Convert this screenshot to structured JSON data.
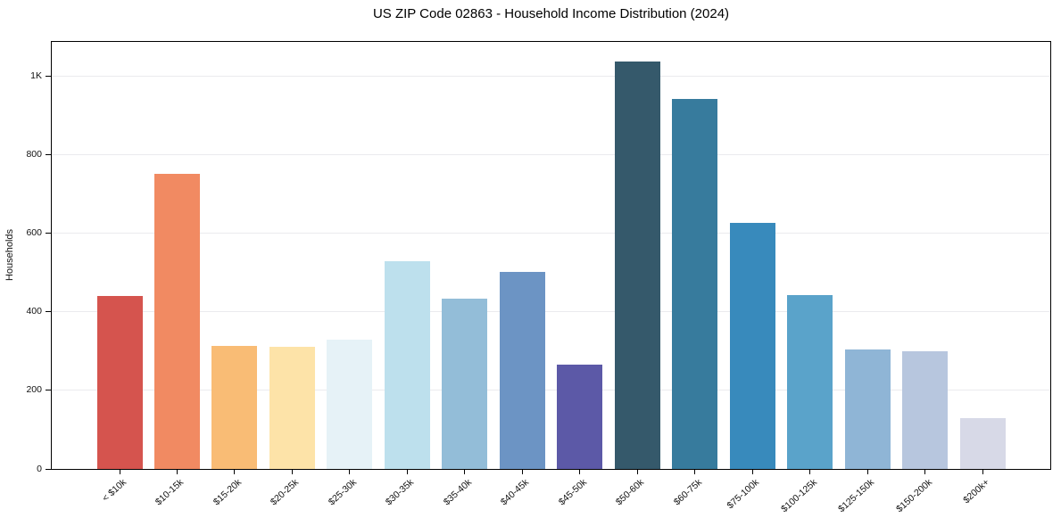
{
  "figure": {
    "title": "US ZIP Code 02863 - Household Income Distribution (2024)"
  },
  "chart_data": {
    "type": "bar",
    "title": "US ZIP Code 02863 - Household Income Distribution (2024)",
    "xlabel": "",
    "ylabel": "Households",
    "categories": [
      "< $10k",
      "$10-15k",
      "$15-20k",
      "$20-25k",
      "$25-30k",
      "$30-35k",
      "$35-40k",
      "$40-45k",
      "$45-50k",
      "$50-60k",
      "$60-75k",
      "$75-100k",
      "$100-125k",
      "$125-150k",
      "$150-200k",
      "$200k+"
    ],
    "values": [
      441,
      751,
      314,
      311,
      329,
      530,
      434,
      502,
      265,
      1038,
      942,
      627,
      444,
      305,
      299,
      129
    ],
    "bar_colors": [
      "#d5544e",
      "#f18a62",
      "#f9bc75",
      "#fde3a8",
      "#e6f2f7",
      "#bde0ed",
      "#93bdd8",
      "#6c94c4",
      "#5c59a7",
      "#35596b",
      "#377b9d",
      "#388abc",
      "#5aa3ca",
      "#8fb5d6",
      "#b7c6de",
      "#d7d9e7"
    ],
    "ylim": [
      0,
      1088
    ],
    "yticks": {
      "values": [
        0,
        200,
        400,
        600,
        800,
        1000
      ],
      "labels": [
        "0",
        "200",
        "400",
        "600",
        "800",
        "1K"
      ]
    },
    "grid": "horizontal",
    "gridline_color": "#ebebee",
    "background": "#ffffff",
    "x_tick_rotation": 45,
    "legend": "none"
  }
}
